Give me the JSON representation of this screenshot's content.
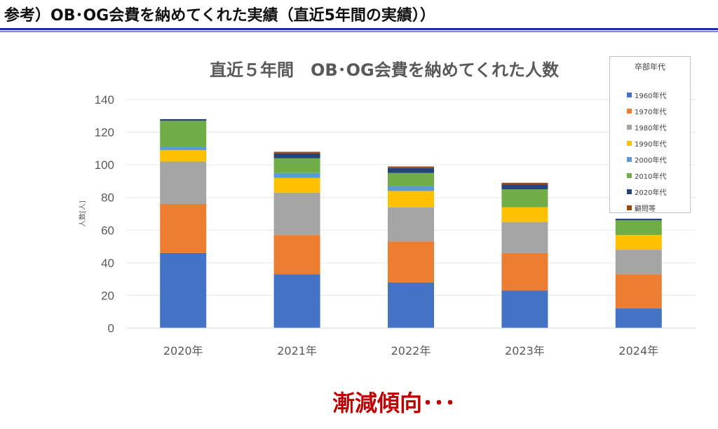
{
  "page": {
    "title": "参考）OB･OG会費を納めてくれた実績（直近5年間の実績））",
    "footer_note": "漸減傾向･･･",
    "accent_color": "#1f2ea8",
    "footer_color": "#c00000"
  },
  "chart_data": {
    "type": "bar",
    "stacked": true,
    "title": "直近５年間　OB･OG会費を納めてくれた人数",
    "xlabel": "",
    "ylabel": "人数[人]",
    "ylim": [
      0,
      140
    ],
    "yticks": [
      0,
      20,
      40,
      60,
      80,
      100,
      120,
      140
    ],
    "grid": true,
    "legend_title": "卒部年代",
    "legend_position": "top-right",
    "categories": [
      "2020年",
      "2021年",
      "2022年",
      "2023年",
      "2024年"
    ],
    "series": [
      {
        "name": "1960年代",
        "color": "#4472c4",
        "values": [
          46,
          33,
          28,
          23,
          12
        ]
      },
      {
        "name": "1970年代",
        "color": "#ed7d31",
        "values": [
          30,
          24,
          25,
          23,
          21
        ]
      },
      {
        "name": "1980年代",
        "color": "#a5a5a5",
        "values": [
          26,
          26,
          21,
          19,
          15
        ]
      },
      {
        "name": "1990年代",
        "color": "#ffc000",
        "values": [
          7,
          9,
          10,
          9,
          9
        ]
      },
      {
        "name": "2000年代",
        "color": "#5b9bd5",
        "values": [
          2,
          3,
          3,
          0,
          0
        ]
      },
      {
        "name": "2010年代",
        "color": "#70ad47",
        "values": [
          16,
          9,
          8,
          11,
          9
        ]
      },
      {
        "name": "2020年代",
        "color": "#264478",
        "values": [
          1,
          3,
          3,
          3,
          1
        ]
      },
      {
        "name": "顧問等",
        "color": "#9e480e",
        "values": [
          0,
          1,
          1,
          1,
          0
        ]
      }
    ]
  }
}
